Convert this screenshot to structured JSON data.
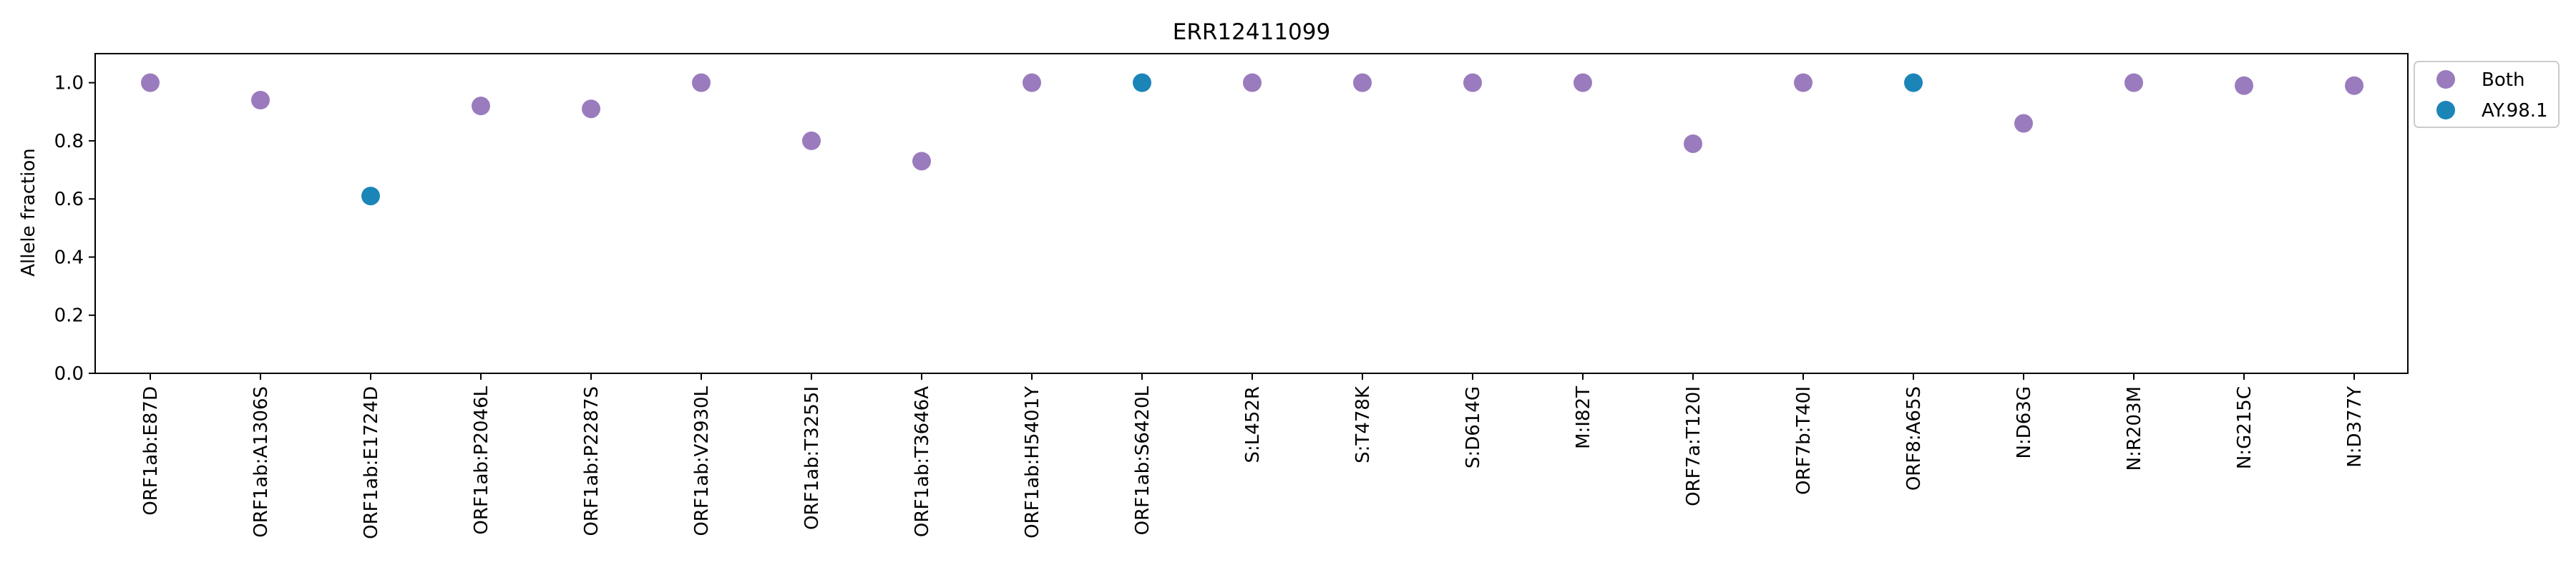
{
  "chart_data": {
    "type": "scatter",
    "title": "ERR12411099",
    "xlabel": "",
    "ylabel": "Allele fraction",
    "ylim": [
      0.0,
      1.1
    ],
    "yticks": [
      "0.0",
      "0.2",
      "0.4",
      "0.6",
      "0.8",
      "1.0"
    ],
    "grid": false,
    "legend_position": "outside top-right",
    "categories": [
      "ORF1ab:E87D",
      "ORF1ab:A1306S",
      "ORF1ab:E1724D",
      "ORF1ab:P2046L",
      "ORF1ab:P2287S",
      "ORF1ab:V2930L",
      "ORF1ab:T3255I",
      "ORF1ab:T3646A",
      "ORF1ab:H5401Y",
      "ORF1ab:S6420L",
      "S:L452R",
      "S:T478K",
      "S:D614G",
      "M:I82T",
      "ORF7a:T120I",
      "ORF7b:T40I",
      "ORF8:A65S",
      "N:D63G",
      "N:R203M",
      "N:G215C",
      "N:D377Y"
    ],
    "series": [
      {
        "name": "Both",
        "color": "#9a7bbd",
        "points": [
          {
            "x": "ORF1ab:E87D",
            "y": 1.0
          },
          {
            "x": "ORF1ab:A1306S",
            "y": 0.94
          },
          {
            "x": "ORF1ab:P2046L",
            "y": 0.92
          },
          {
            "x": "ORF1ab:P2287S",
            "y": 0.91
          },
          {
            "x": "ORF1ab:V2930L",
            "y": 1.0
          },
          {
            "x": "ORF1ab:T3255I",
            "y": 0.8
          },
          {
            "x": "ORF1ab:T3646A",
            "y": 0.73
          },
          {
            "x": "ORF1ab:H5401Y",
            "y": 1.0
          },
          {
            "x": "S:L452R",
            "y": 1.0
          },
          {
            "x": "S:T478K",
            "y": 1.0
          },
          {
            "x": "S:D614G",
            "y": 1.0
          },
          {
            "x": "M:I82T",
            "y": 1.0
          },
          {
            "x": "ORF7a:T120I",
            "y": 0.79
          },
          {
            "x": "ORF7b:T40I",
            "y": 1.0
          },
          {
            "x": "N:D63G",
            "y": 0.86
          },
          {
            "x": "N:R203M",
            "y": 1.0
          },
          {
            "x": "N:G215C",
            "y": 0.99
          },
          {
            "x": "N:D377Y",
            "y": 0.99
          }
        ]
      },
      {
        "name": "AY.98.1",
        "color": "#1b85b8",
        "points": [
          {
            "x": "ORF1ab:E1724D",
            "y": 0.61
          },
          {
            "x": "ORF1ab:S6420L",
            "y": 1.0
          },
          {
            "x": "ORF8:A65S",
            "y": 1.0
          }
        ]
      }
    ]
  }
}
